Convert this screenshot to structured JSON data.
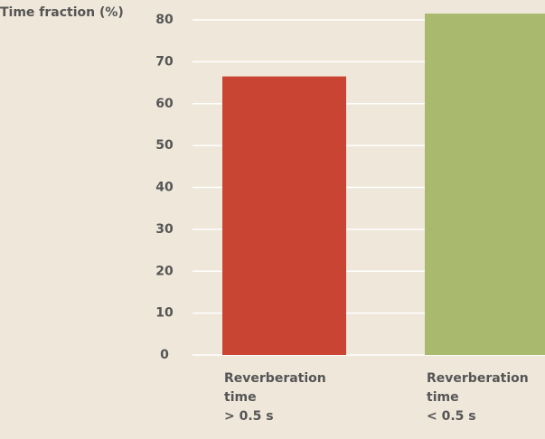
{
  "chart_data": {
    "type": "bar",
    "y_axis_label": "Time fraction (%)",
    "categories": [
      "Reverberation time\n> 0.5 s",
      "Reverberation time\n< 0.5 s"
    ],
    "values": [
      66.5,
      81.5
    ],
    "colors": [
      "#c94432",
      "#a9ba6e"
    ],
    "ylim": [
      0,
      80
    ],
    "yticks": [
      0,
      10,
      20,
      30,
      40,
      50,
      60,
      70,
      80
    ],
    "grid": true
  }
}
